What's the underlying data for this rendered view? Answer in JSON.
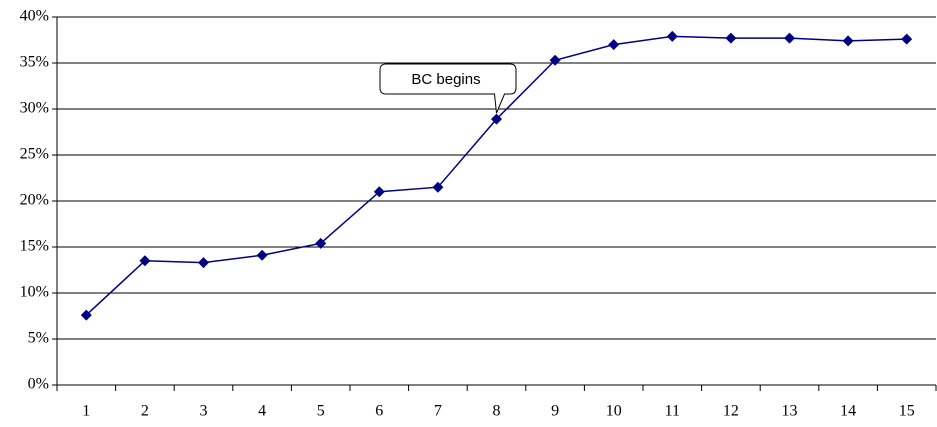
{
  "chart_data": {
    "type": "line",
    "categories": [
      "1",
      "2",
      "3",
      "4",
      "5",
      "6",
      "7",
      "8",
      "9",
      "10",
      "11",
      "12",
      "13",
      "14",
      "15"
    ],
    "series": [
      {
        "color": "#000080",
        "values": [
          7.6,
          13.5,
          13.3,
          14.1,
          15.4,
          21.0,
          21.5,
          28.9,
          35.3,
          37.0,
          37.9,
          37.7,
          37.7,
          37.4,
          37.6
        ]
      }
    ],
    "ylim": [
      0,
      40
    ],
    "yticks": [
      {
        "value": 0,
        "label": "0%"
      },
      {
        "value": 5,
        "label": "5%"
      },
      {
        "value": 10,
        "label": "10%"
      },
      {
        "value": 15,
        "label": "15%"
      },
      {
        "value": 20,
        "label": "20%"
      },
      {
        "value": 25,
        "label": "25%"
      },
      {
        "value": 30,
        "label": "30%"
      },
      {
        "value": 35,
        "label": "35%"
      },
      {
        "value": 40,
        "label": "40%"
      }
    ],
    "grid": true,
    "annotation": "BC begins"
  }
}
